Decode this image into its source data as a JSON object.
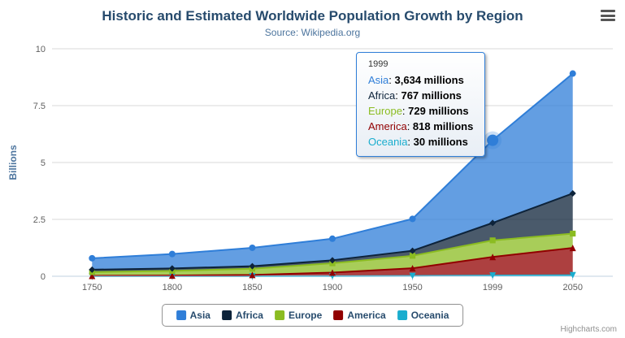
{
  "chart": {
    "title": "Historic and Estimated Worldwide Population Growth by Region",
    "subtitle": "Source: Wikipedia.org",
    "credits": "Highcharts.com"
  },
  "chart_data": {
    "type": "area",
    "stacking": "normal",
    "title": "Historic and Estimated Worldwide Population Growth by Region",
    "subtitle": "Source: Wikipedia.org",
    "categories": [
      "1750",
      "1800",
      "1850",
      "1900",
      "1950",
      "1999",
      "2050"
    ],
    "unit": "millions",
    "xlabel": "",
    "ylabel": "Billions",
    "ylim": [
      0,
      10
    ],
    "yticks": [
      0,
      2.5,
      5,
      7.5,
      10
    ],
    "grid": true,
    "legend_position": "bottom",
    "series": [
      {
        "name": "Asia",
        "color": "#2f7ed8",
        "marker": "circle",
        "values": [
          502,
          635,
          809,
          947,
          1402,
          3634,
          5268
        ]
      },
      {
        "name": "Africa",
        "color": "#0d233a",
        "marker": "diamond",
        "values": [
          106,
          107,
          111,
          133,
          221,
          767,
          1766
        ]
      },
      {
        "name": "Europe",
        "color": "#8bbc21",
        "marker": "square",
        "values": [
          163,
          203,
          276,
          408,
          547,
          729,
          628
        ]
      },
      {
        "name": "America",
        "color": "#910000",
        "marker": "triangle",
        "values": [
          18,
          31,
          54,
          156,
          339,
          818,
          1201
        ]
      },
      {
        "name": "Oceania",
        "color": "#1aadce",
        "marker": "triangle-down",
        "values": [
          2,
          2,
          2,
          6,
          13,
          30,
          46
        ]
      }
    ],
    "hovered_point": {
      "series": "Asia",
      "category": "1999"
    }
  },
  "tooltip": {
    "header": "1999",
    "rows": [
      {
        "name": "Asia",
        "color": "#2f7ed8",
        "value": "3,634 millions"
      },
      {
        "name": "Africa",
        "color": "#0d233a",
        "value": "767 millions"
      },
      {
        "name": "Europe",
        "color": "#8bbc21",
        "value": "729 millions"
      },
      {
        "name": "America",
        "color": "#910000",
        "value": "818 millions"
      },
      {
        "name": "Oceania",
        "color": "#1aadce",
        "value": "30 millions"
      }
    ]
  }
}
